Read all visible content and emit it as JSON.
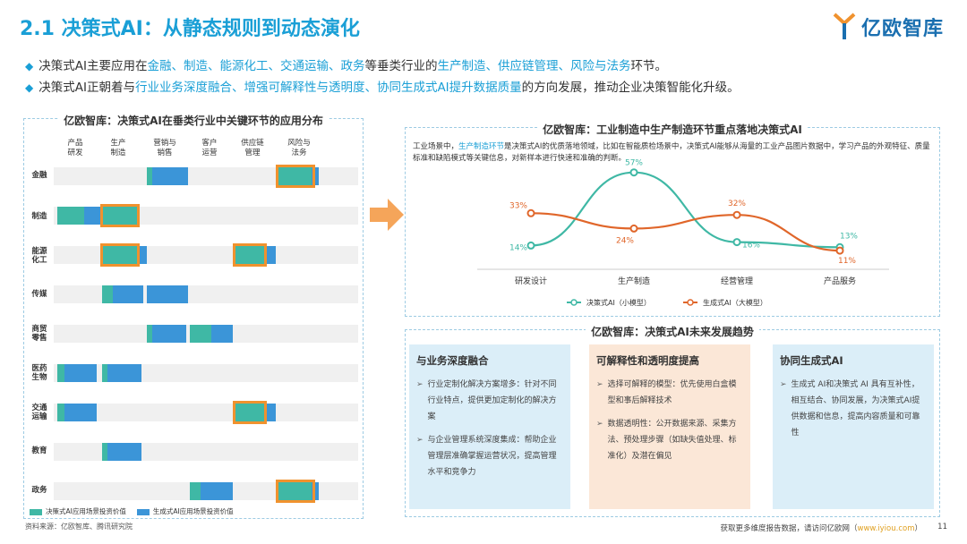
{
  "title": "2.1 决策式AI：从静态规则到动态演化",
  "logo_text": "亿欧智库",
  "bullets": [
    {
      "pre": "决策式AI主要应用在",
      "hl1": "金融、制造、能源化工、交通运输、政务",
      "mid": "等垂类行业的",
      "hl2": "生产制造、供应链管理、风险与法务",
      "post": "环节。"
    },
    {
      "pre": "决策式AI正朝着与",
      "hl1": "行业业务深度融合、增强可解释性与透明度、协同生成式AI提升数据质量",
      "mid": "的方向发展，推动企业决策智能化升级。",
      "hl2": "",
      "post": ""
    }
  ],
  "left_panel": {
    "title": "亿欧智库：决策式AI在垂类行业中关键环节的应用分布",
    "columns": [
      "产品\n研发",
      "生产\n制造",
      "营销与\n销售",
      "客户\n运营",
      "供应链\n管理",
      "风险与\n法务"
    ],
    "rows": [
      {
        "label": "金融"
      },
      {
        "label": "制造"
      },
      {
        "label": "能源\n化工"
      },
      {
        "label": "传媒"
      },
      {
        "label": "商贸\n零售"
      },
      {
        "label": "医药\n生物"
      },
      {
        "label": "交通\n运输"
      },
      {
        "label": "教育"
      },
      {
        "label": "政务"
      }
    ],
    "legend": [
      "决策式AI应用场景投资价值",
      "生成式AI应用场景投资价值"
    ]
  },
  "source": "资料来源：亿欧智库、腾讯研究院",
  "chart_panel": {
    "title": "亿欧智库：工业制造中生产制造环节重点落地决策式AI",
    "desc_pre": "工业场景中，",
    "desc_hl": "生产制造环节",
    "desc_post": "是决策式AI的优质落地领域，比如在智能质检场景中，决策式AI能够从海量的工业产品图片数据中，学习产品的外观特征、质量标准和缺陷模式等关键信息，对新样本进行快速和准确的判断。"
  },
  "chart_data": {
    "type": "line",
    "categories": [
      "研发设计",
      "生产制造",
      "经营管理",
      "产品服务"
    ],
    "series": [
      {
        "name": "决策式AI（小模型）",
        "values": [
          14,
          57,
          16,
          13
        ],
        "labels": [
          "14%",
          "57%",
          "16%",
          "13%"
        ],
        "color": "#3fb8a5"
      },
      {
        "name": "生成式AI（大模型）",
        "values": [
          33,
          24,
          32,
          11
        ],
        "labels": [
          "33%",
          "24%",
          "32%",
          "11%"
        ],
        "color": "#e0662a"
      }
    ],
    "ylim": [
      0,
      60
    ]
  },
  "trend_panel": {
    "title": "亿欧智库：决策式AI未来发展趋势",
    "boxes": [
      {
        "heading": "与业务深度融合",
        "items": [
          "行业定制化解决方案增多：针对不同行业特点，提供更加定制化的解决方案",
          "与企业管理系统深度集成：帮助企业管理层准确掌握运营状况，提高管理水平和竞争力"
        ]
      },
      {
        "heading": "可解释性和透明度提高",
        "items": [
          "选择可解释的模型：优先使用白盒模型和事后解释技术",
          "数据透明性：公开数据来源、采集方法、预处理步骤（如缺失值处理、标准化）及潜在偏见"
        ]
      },
      {
        "heading": "协同生成式AI",
        "items": [
          "生成式 AI和决策式 AI 具有互补性，相互结合、协同发展，为决策式AI提供数据和信息，提高内容质量和可靠性"
        ]
      }
    ]
  },
  "footer": {
    "text": "获取更多维度报告数据，请访问亿欧网（",
    "url": "www.iyiou.com",
    "close": "）",
    "page": "11"
  },
  "colors": {
    "accent": "#1a9fd6",
    "green": "#3fb8a5",
    "blue": "#3b95d8",
    "orange": "#f0922e"
  }
}
